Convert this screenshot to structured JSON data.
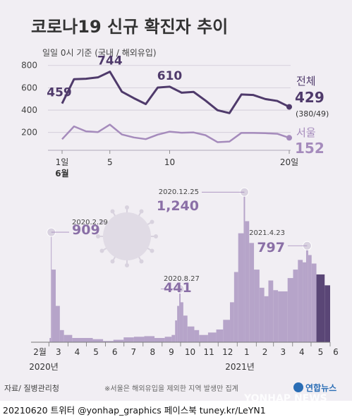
{
  "title": "코로나19 신규 확진자 추이",
  "subtitle": "일일 0시 기준 (국내 / 해외유입)",
  "source": "자료/ 질병관리청",
  "note": "※서울은 해외유입을 제외한 지역 발생만 집계",
  "logo": "연합뉴스",
  "watermark": "YONHAP NEWS",
  "footer": "20210620 트위터 @yonhap_graphics  페이스북 tuney.kr/LeYN1",
  "colors": {
    "total": "#4f3a6b",
    "seoul": "#a58bbc",
    "bars": "#b6a4c9",
    "bars_recent": "#5a4676",
    "background": "#f1eef3"
  },
  "chart_data": [
    {
      "type": "line",
      "title": "",
      "x": [
        1,
        2,
        3,
        4,
        5,
        6,
        7,
        8,
        9,
        10,
        11,
        12,
        13,
        14,
        15,
        16,
        17,
        18,
        19,
        20
      ],
      "x_ticks": [
        "1일",
        "5",
        "10",
        "20일"
      ],
      "x_tick_values": [
        1,
        5,
        10,
        20
      ],
      "x_month_label": "6월",
      "y_ticks": [
        200,
        400,
        600,
        800
      ],
      "ylim": [
        40,
        830
      ],
      "grid": true,
      "series": [
        {
          "name": "전체",
          "latest_value": "429",
          "latest_breakdown": "(380/49)",
          "values": [
            459,
            677,
            681,
            693,
            744,
            565,
            507,
            454,
            602,
            610,
            556,
            563,
            485,
            399,
            373,
            540,
            535,
            499,
            482,
            429
          ],
          "labels": [
            {
              "x": 1,
              "text": "459"
            },
            {
              "x": 5,
              "text": "744"
            },
            {
              "x": 10,
              "text": "610"
            }
          ]
        },
        {
          "name": "서울",
          "latest_value": "152",
          "values": [
            139,
            254,
            210,
            203,
            270,
            182,
            155,
            140,
            180,
            207,
            197,
            200,
            175,
            113,
            118,
            196,
            196,
            193,
            188,
            152
          ]
        }
      ]
    },
    {
      "type": "bar",
      "title": "",
      "x_month_ticks": [
        "2월",
        "3",
        "4",
        "5",
        "6",
        "7",
        "8",
        "9",
        "10",
        "11",
        "12",
        "1",
        "2",
        "3",
        "4",
        "5",
        "6"
      ],
      "year_labels": [
        "2020년",
        "2021년"
      ],
      "ylim": [
        0,
        1300
      ],
      "annotations": [
        {
          "date": "2020.2.29",
          "value": "909"
        },
        {
          "date": "2020.8.27",
          "value": "441"
        },
        {
          "date": "2020.12.25",
          "value": "1,240"
        },
        {
          "date": "2021.4.23",
          "value": "797"
        }
      ],
      "segments": [
        [
          0,
          14,
          0
        ],
        [
          14,
          27,
          3
        ],
        [
          27,
          29,
          35
        ],
        [
          29,
          30,
          909
        ],
        [
          30,
          36,
          600
        ],
        [
          36,
          42,
          300
        ],
        [
          42,
          48,
          100
        ],
        [
          48,
          60,
          60
        ],
        [
          60,
          90,
          35
        ],
        [
          90,
          105,
          25
        ],
        [
          105,
          120,
          10
        ],
        [
          120,
          135,
          20
        ],
        [
          135,
          150,
          40
        ],
        [
          150,
          165,
          45
        ],
        [
          165,
          180,
          50
        ],
        [
          180,
          195,
          35
        ],
        [
          195,
          205,
          45
        ],
        [
          205,
          210,
          60
        ],
        [
          210,
          213,
          180
        ],
        [
          213,
          216,
          300
        ],
        [
          216,
          218,
          441
        ],
        [
          218,
          222,
          330
        ],
        [
          222,
          228,
          220
        ],
        [
          228,
          238,
          130
        ],
        [
          238,
          245,
          100
        ],
        [
          245,
          258,
          60
        ],
        [
          258,
          270,
          80
        ],
        [
          270,
          280,
          105
        ],
        [
          280,
          290,
          185
        ],
        [
          290,
          296,
          330
        ],
        [
          296,
          302,
          580
        ],
        [
          302,
          310,
          900
        ],
        [
          310,
          312,
          1240
        ],
        [
          312,
          318,
          1000
        ],
        [
          318,
          325,
          820
        ],
        [
          325,
          333,
          600
        ],
        [
          333,
          340,
          450
        ],
        [
          340,
          346,
          380
        ],
        [
          346,
          353,
          510
        ],
        [
          353,
          360,
          430
        ],
        [
          360,
          374,
          420
        ],
        [
          374,
          382,
          530
        ],
        [
          382,
          389,
          600
        ],
        [
          389,
          396,
          680
        ],
        [
          396,
          401,
          660
        ],
        [
          401,
          404,
          797
        ],
        [
          404,
          409,
          720
        ],
        [
          409,
          416,
          650
        ],
        [
          416,
          428,
          560
        ],
        [
          428,
          436,
          470
        ]
      ]
    }
  ]
}
